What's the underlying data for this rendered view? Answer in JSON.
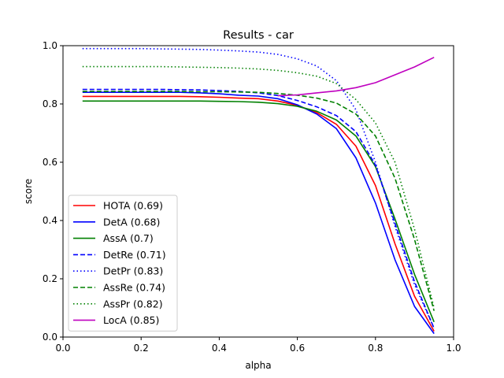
{
  "chart_data": {
    "type": "line",
    "title": "Results - car",
    "xlabel": "alpha",
    "ylabel": "score",
    "xlim": [
      0.0,
      1.0
    ],
    "ylim": [
      0.0,
      1.0
    ],
    "xticks": [
      "0.0",
      "0.2",
      "0.4",
      "0.6",
      "0.8",
      "1.0"
    ],
    "yticks": [
      "0.0",
      "0.2",
      "0.4",
      "0.6",
      "0.8",
      "1.0"
    ],
    "grid": false,
    "legend_position": "lower-left",
    "x": [
      0.05,
      0.1,
      0.15,
      0.2,
      0.25,
      0.3,
      0.35,
      0.4,
      0.45,
      0.5,
      0.55,
      0.6,
      0.65,
      0.7,
      0.75,
      0.8,
      0.85,
      0.9,
      0.95
    ],
    "series": [
      {
        "name": "HOTA (0.69)",
        "color": "#ff0000",
        "dash": "solid",
        "values": [
          0.826,
          0.826,
          0.826,
          0.826,
          0.826,
          0.826,
          0.825,
          0.823,
          0.82,
          0.818,
          0.81,
          0.795,
          0.77,
          0.73,
          0.655,
          0.52,
          0.32,
          0.14,
          0.02
        ]
      },
      {
        "name": "DetA (0.68)",
        "color": "#0000ff",
        "dash": "solid",
        "values": [
          0.84,
          0.84,
          0.84,
          0.84,
          0.84,
          0.84,
          0.838,
          0.835,
          0.83,
          0.827,
          0.818,
          0.797,
          0.765,
          0.715,
          0.615,
          0.46,
          0.265,
          0.105,
          0.012
        ]
      },
      {
        "name": "AssA (0.7)",
        "color": "#008000",
        "dash": "solid",
        "values": [
          0.81,
          0.81,
          0.81,
          0.81,
          0.81,
          0.81,
          0.81,
          0.809,
          0.808,
          0.806,
          0.801,
          0.792,
          0.775,
          0.745,
          0.69,
          0.585,
          0.405,
          0.215,
          0.052
        ]
      },
      {
        "name": "DetRe (0.71)",
        "color": "#0000ff",
        "dash": "dashed",
        "values": [
          0.85,
          0.85,
          0.85,
          0.85,
          0.85,
          0.849,
          0.848,
          0.846,
          0.843,
          0.838,
          0.829,
          0.812,
          0.79,
          0.76,
          0.705,
          0.59,
          0.39,
          0.19,
          0.03
        ]
      },
      {
        "name": "DetPr (0.83)",
        "color": "#0000ff",
        "dash": "dotted",
        "values": [
          0.99,
          0.99,
          0.99,
          0.99,
          0.989,
          0.988,
          0.987,
          0.985,
          0.982,
          0.978,
          0.97,
          0.955,
          0.93,
          0.88,
          0.78,
          0.6,
          0.38,
          0.18,
          0.03
        ]
      },
      {
        "name": "AssRe (0.74)",
        "color": "#008000",
        "dash": "dashed",
        "values": [
          0.843,
          0.843,
          0.843,
          0.843,
          0.843,
          0.843,
          0.842,
          0.842,
          0.841,
          0.84,
          0.836,
          0.83,
          0.82,
          0.803,
          0.765,
          0.69,
          0.545,
          0.335,
          0.09
        ]
      },
      {
        "name": "AssPr (0.82)",
        "color": "#008000",
        "dash": "dotted",
        "values": [
          0.928,
          0.928,
          0.928,
          0.928,
          0.928,
          0.927,
          0.926,
          0.925,
          0.923,
          0.92,
          0.915,
          0.907,
          0.895,
          0.87,
          0.815,
          0.735,
          0.6,
          0.37,
          0.1
        ]
      },
      {
        "name": "LocA (0.85)",
        "color": "#bf00bf",
        "dash": "solid",
        "values": [
          null,
          null,
          null,
          null,
          null,
          null,
          null,
          null,
          null,
          null,
          0.828,
          0.831,
          0.838,
          0.845,
          0.856,
          0.873,
          0.9,
          0.927,
          0.96
        ]
      }
    ]
  }
}
